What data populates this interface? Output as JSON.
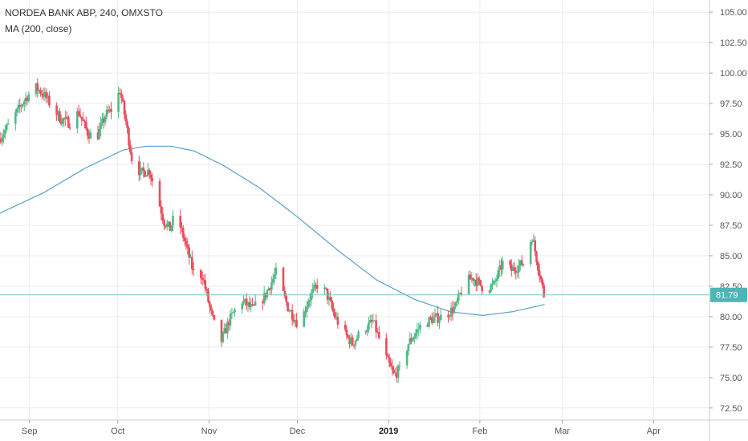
{
  "legend": {
    "symbol_line": "NORDEA BANK ABP, 240, OMXSTO",
    "indicator_line": "MA (200, close)"
  },
  "colors": {
    "up": "#53b987",
    "down": "#eb4d5c",
    "ma": "#5aa1c5",
    "price_line": "#7ec8cc",
    "price_badge": "#4fb4b6",
    "grid": "#e9ecef",
    "axis_text": "#555555"
  },
  "chart_data": {
    "type": "candlestick",
    "title": "NORDEA BANK ABP, 240, OMXSTO",
    "indicator": "MA (200, close)",
    "ylim": [
      71.5,
      106.0
    ],
    "y_ticks": [
      "72.50",
      "75.00",
      "77.50",
      "80.00",
      "82.50",
      "85.00",
      "87.50",
      "90.00",
      "92.50",
      "95.00",
      "97.50",
      "100.00",
      "102.50",
      "105.00"
    ],
    "x_labels": [
      {
        "label": "Sep",
        "date": "2018-09-01"
      },
      {
        "label": "Oct",
        "date": "2018-10-01"
      },
      {
        "label": "Nov",
        "date": "2018-11-01"
      },
      {
        "label": "Dec",
        "date": "2018-12-01"
      },
      {
        "label": "2019",
        "date": "2019-01-01",
        "bold": true
      },
      {
        "label": "Feb",
        "date": "2019-02-01"
      },
      {
        "label": "Mar",
        "date": "2019-03-01"
      },
      {
        "label": "Apr",
        "date": "2019-04-01"
      }
    ],
    "x_range": [
      "2018-08-22",
      "2019-04-20"
    ],
    "last_price": 81.79,
    "price_keypoints": [
      [
        "2018-08-22",
        94.6
      ],
      [
        "2018-08-26",
        96.0
      ],
      [
        "2018-08-30",
        97.6
      ],
      [
        "2018-09-03",
        98.9
      ],
      [
        "2018-09-06",
        98.3
      ],
      [
        "2018-09-09",
        97.2
      ],
      [
        "2018-09-12",
        96.2
      ],
      [
        "2018-09-15",
        95.9
      ],
      [
        "2018-09-18",
        96.8
      ],
      [
        "2018-09-21",
        95.1
      ],
      [
        "2018-09-24",
        94.6
      ],
      [
        "2018-09-27",
        96.5
      ],
      [
        "2018-09-30",
        97.2
      ],
      [
        "2018-10-02",
        98.6
      ],
      [
        "2018-10-04",
        96.0
      ],
      [
        "2018-10-06",
        93.0
      ],
      [
        "2018-10-09",
        91.8
      ],
      [
        "2018-10-12",
        92.0
      ],
      [
        "2018-10-15",
        89.6
      ],
      [
        "2018-10-17",
        87.8
      ],
      [
        "2018-10-19",
        87.2
      ],
      [
        "2018-10-21",
        88.6
      ],
      [
        "2018-10-24",
        86.2
      ],
      [
        "2018-10-27",
        83.6
      ],
      [
        "2018-10-30",
        83.4
      ],
      [
        "2018-11-02",
        80.2
      ],
      [
        "2018-11-05",
        77.7
      ],
      [
        "2018-11-08",
        79.6
      ],
      [
        "2018-11-12",
        81.4
      ],
      [
        "2018-11-16",
        80.6
      ],
      [
        "2018-11-20",
        81.6
      ],
      [
        "2018-11-24",
        83.6
      ],
      [
        "2018-11-28",
        80.8
      ],
      [
        "2018-12-02",
        79.2
      ],
      [
        "2018-12-05",
        81.4
      ],
      [
        "2018-12-08",
        82.6
      ],
      [
        "2018-12-11",
        82.0
      ],
      [
        "2018-12-14",
        80.0
      ],
      [
        "2018-12-17",
        78.7
      ],
      [
        "2018-12-20",
        77.8
      ],
      [
        "2018-12-23",
        78.8
      ],
      [
        "2018-12-27",
        79.6
      ],
      [
        "2018-12-31",
        76.8
      ],
      [
        "2019-01-03",
        75.2
      ],
      [
        "2019-01-05",
        75.6
      ],
      [
        "2019-01-08",
        77.8
      ],
      [
        "2019-01-12",
        79.2
      ],
      [
        "2019-01-16",
        79.8
      ],
      [
        "2019-01-20",
        80.0
      ],
      [
        "2019-01-24",
        80.8
      ],
      [
        "2019-01-27",
        82.8
      ],
      [
        "2019-01-30",
        83.2
      ],
      [
        "2019-02-03",
        82.2
      ],
      [
        "2019-02-06",
        82.6
      ],
      [
        "2019-02-09",
        84.4
      ],
      [
        "2019-02-12",
        83.8
      ],
      [
        "2019-02-16",
        84.4
      ],
      [
        "2019-02-19",
        86.6
      ],
      [
        "2019-02-21",
        84.2
      ],
      [
        "2019-02-23",
        81.8
      ]
    ],
    "ma_keypoints": [
      [
        "2018-08-22",
        88.5
      ],
      [
        "2018-09-06",
        90.2
      ],
      [
        "2018-09-20",
        92.2
      ],
      [
        "2018-10-03",
        93.7
      ],
      [
        "2018-10-11",
        94.0
      ],
      [
        "2018-10-19",
        94.0
      ],
      [
        "2018-10-27",
        93.6
      ],
      [
        "2018-11-06",
        92.4
      ],
      [
        "2018-11-18",
        90.6
      ],
      [
        "2018-12-01",
        88.2
      ],
      [
        "2018-12-15",
        85.4
      ],
      [
        "2018-12-28",
        83.0
      ],
      [
        "2019-01-10",
        81.4
      ],
      [
        "2019-01-22",
        80.4
      ],
      [
        "2019-02-02",
        80.1
      ],
      [
        "2019-02-12",
        80.4
      ],
      [
        "2019-02-23",
        81.0
      ]
    ]
  }
}
